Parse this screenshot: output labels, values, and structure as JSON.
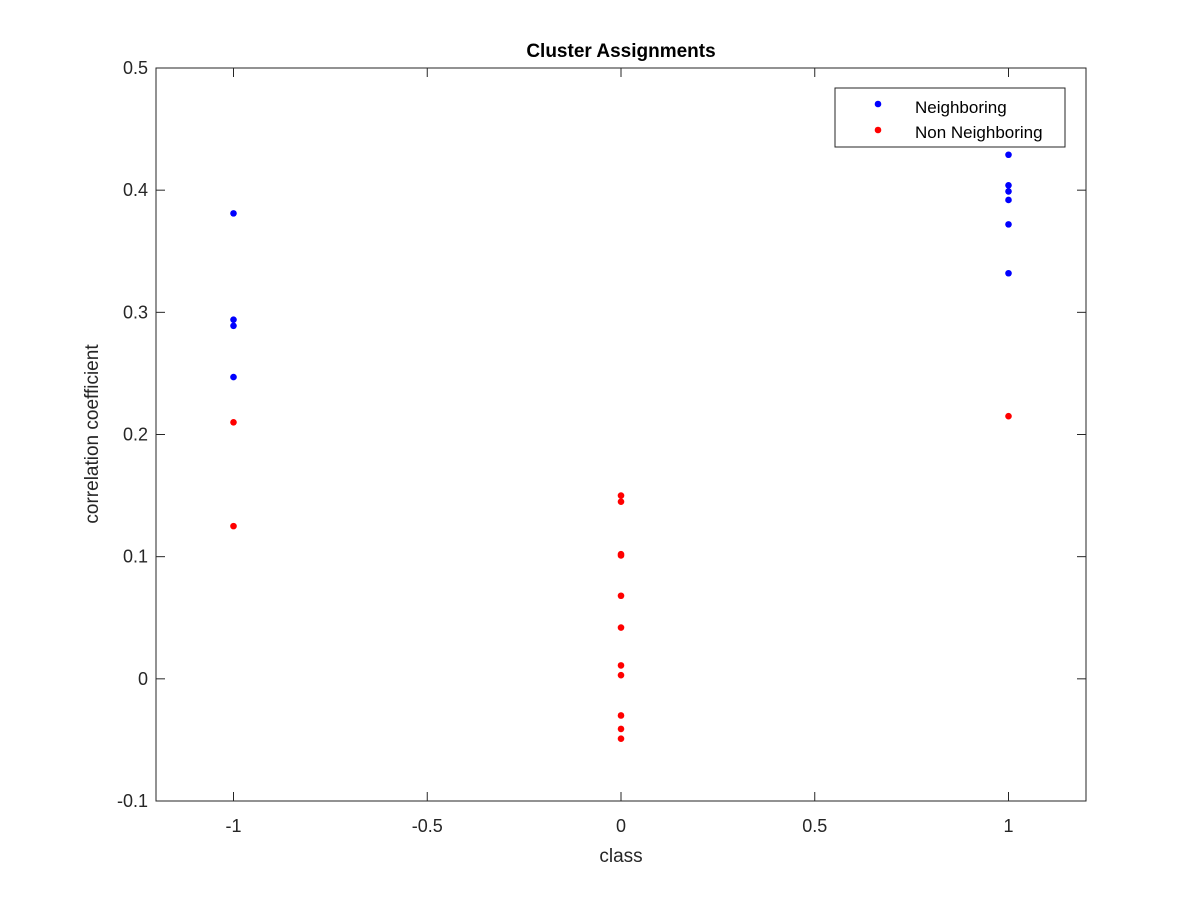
{
  "chart_data": {
    "type": "scatter",
    "title": "Cluster Assignments",
    "xlabel": "class",
    "ylabel": "correlation coefficient",
    "xlim": [
      -1.2,
      1.2
    ],
    "ylim": [
      -0.1,
      0.5
    ],
    "xticks": [
      -1,
      -0.5,
      0,
      0.5,
      1
    ],
    "xtick_labels": [
      "-1",
      "-0.5",
      "0",
      "0.5",
      "1"
    ],
    "yticks": [
      -0.1,
      0,
      0.1,
      0.2,
      0.3,
      0.4,
      0.5
    ],
    "ytick_labels": [
      "-0.1",
      "0",
      "0.1",
      "0.2",
      "0.3",
      "0.4",
      "0.5"
    ],
    "grid": false,
    "legend_position": "top-right",
    "series": [
      {
        "name": "Neighboring",
        "color": "#0000ff",
        "points": [
          [
            -1,
            0.381
          ],
          [
            -1,
            0.294
          ],
          [
            -1,
            0.289
          ],
          [
            -1,
            0.247
          ],
          [
            1,
            0.429
          ],
          [
            1,
            0.404
          ],
          [
            1,
            0.399
          ],
          [
            1,
            0.392
          ],
          [
            1,
            0.372
          ],
          [
            1,
            0.332
          ]
        ]
      },
      {
        "name": "Non Neighboring",
        "color": "#ff0000",
        "points": [
          [
            -1,
            0.21
          ],
          [
            -1,
            0.125
          ],
          [
            0,
            0.15
          ],
          [
            0,
            0.145
          ],
          [
            0,
            0.102
          ],
          [
            0,
            0.101
          ],
          [
            0,
            0.068
          ],
          [
            0,
            0.042
          ],
          [
            0,
            0.011
          ],
          [
            0,
            0.003
          ],
          [
            0,
            -0.03
          ],
          [
            0,
            -0.041
          ],
          [
            0,
            -0.049
          ],
          [
            1,
            0.215
          ]
        ]
      }
    ]
  }
}
